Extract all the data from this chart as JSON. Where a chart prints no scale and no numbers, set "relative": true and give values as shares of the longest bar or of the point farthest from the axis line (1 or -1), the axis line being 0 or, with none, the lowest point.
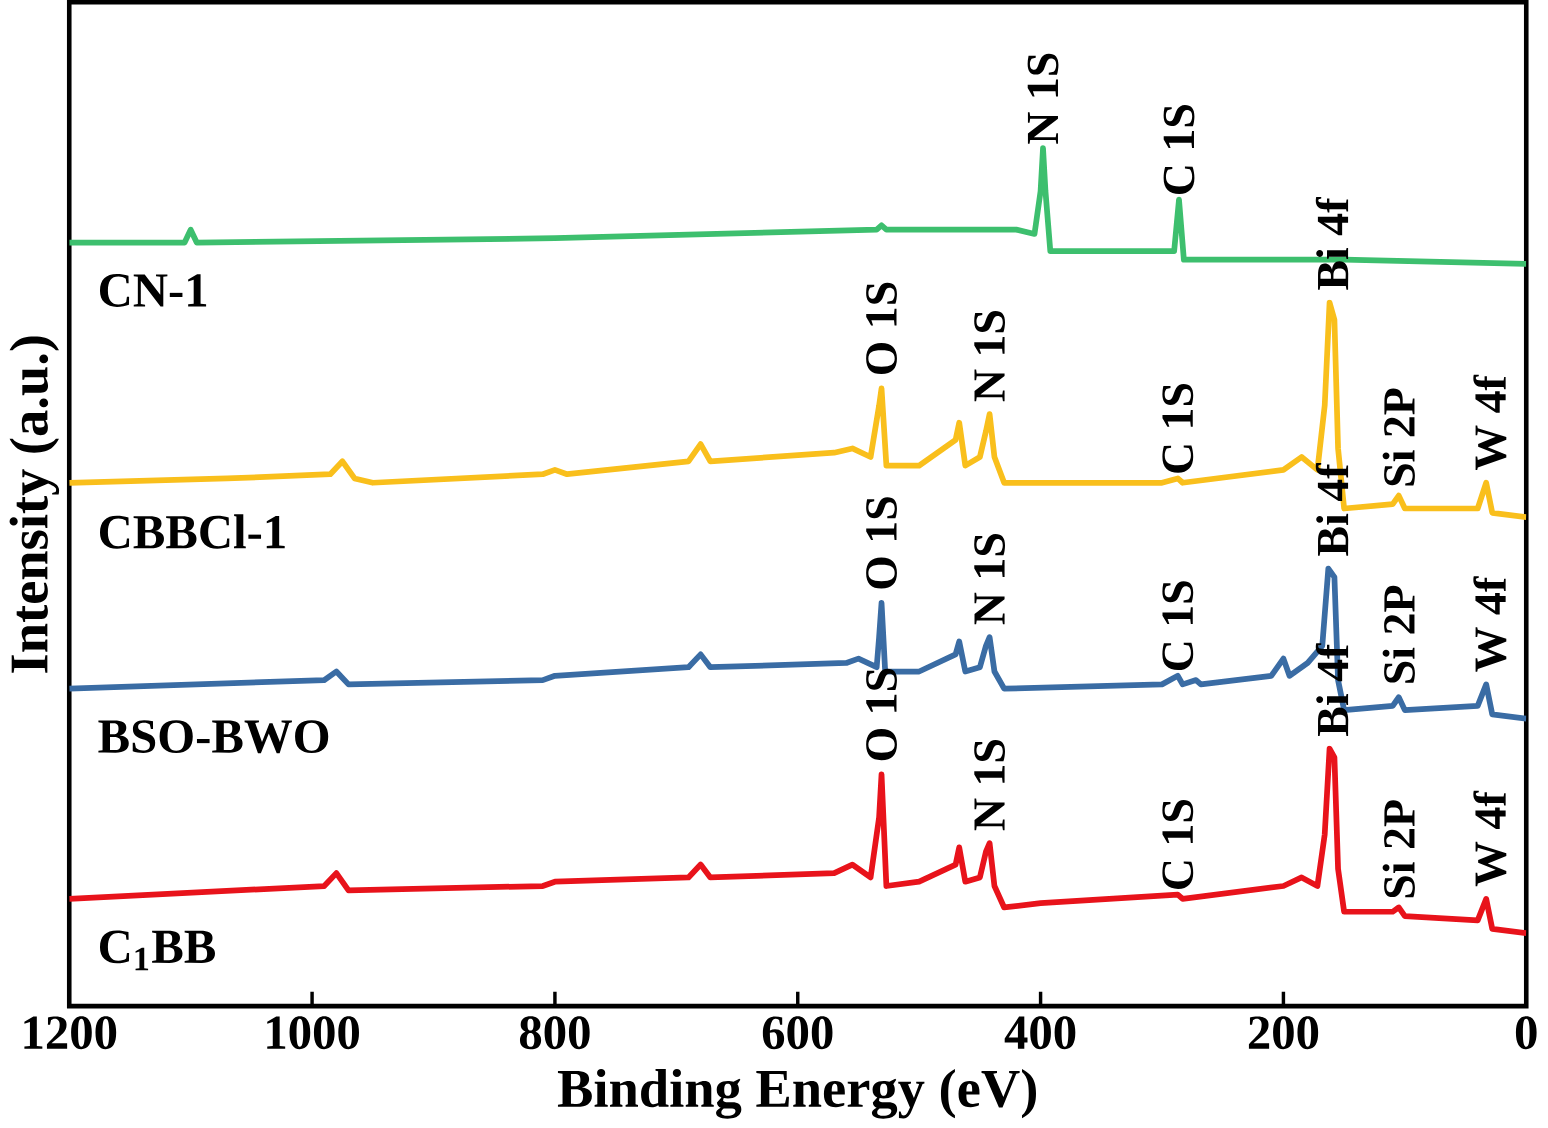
{
  "chart_data": {
    "type": "line",
    "relative": true,
    "xlabel": "Binding Energy (eV)",
    "ylabel": "Intensity (a.u.)",
    "xlim": [
      1200,
      0
    ],
    "xticks": [
      1200,
      1000,
      800,
      600,
      400,
      200,
      0
    ],
    "line_style": "solid",
    "series": [
      {
        "name": "CN-1",
        "color": "#3dbf6e",
        "x": [
          1200,
          1105,
          1100,
          1095,
          800,
          535,
          531,
          527,
          420,
          405,
          400,
          398,
          396,
          392,
          300,
          290,
          286,
          282,
          150,
          0
        ],
        "values": [
          0.89,
          0.89,
          0.905,
          0.89,
          0.895,
          0.905,
          0.91,
          0.905,
          0.905,
          0.9,
          0.95,
          1,
          0.95,
          0.88,
          0.88,
          0.88,
          0.94,
          0.87,
          0.87,
          0.865
        ]
      },
      {
        "name": "CBBCl-1",
        "color": "#f9bf1c",
        "x": [
          1200,
          1070,
          985,
          975,
          965,
          950,
          810,
          800,
          790,
          690,
          680,
          672,
          570,
          555,
          540,
          533,
          531,
          527,
          500,
          470,
          467,
          462,
          450,
          445,
          442,
          438,
          430,
          300,
          287,
          283,
          200,
          185,
          172,
          166,
          162,
          158,
          155,
          150,
          110,
          105,
          100,
          40,
          33,
          28,
          0
        ],
        "values": [
          0.61,
          0.615,
          0.62,
          0.635,
          0.615,
          0.61,
          0.62,
          0.625,
          0.62,
          0.635,
          0.655,
          0.635,
          0.645,
          0.65,
          0.64,
          0.7,
          0.72,
          0.63,
          0.63,
          0.66,
          0.68,
          0.63,
          0.64,
          0.67,
          0.69,
          0.64,
          0.61,
          0.61,
          0.615,
          0.61,
          0.625,
          0.64,
          0.625,
          0.7,
          0.82,
          0.8,
          0.65,
          0.58,
          0.585,
          0.595,
          0.58,
          0.58,
          0.61,
          0.575,
          0.57
        ]
      },
      {
        "name": "BSO-BWO",
        "color": "#3a6ca4",
        "x": [
          1200,
          990,
          980,
          970,
          810,
          800,
          690,
          680,
          672,
          560,
          550,
          535,
          533,
          531,
          528,
          500,
          470,
          467,
          462,
          450,
          445,
          442,
          438,
          430,
          300,
          287,
          283,
          272,
          268,
          210,
          200,
          195,
          180,
          168,
          163,
          158,
          155,
          150,
          110,
          105,
          100,
          40,
          33,
          28,
          0
        ],
        "values": [
          0.37,
          0.38,
          0.39,
          0.375,
          0.38,
          0.385,
          0.395,
          0.41,
          0.395,
          0.4,
          0.405,
          0.395,
          0.43,
          0.47,
          0.39,
          0.39,
          0.41,
          0.425,
          0.39,
          0.395,
          0.42,
          0.43,
          0.39,
          0.37,
          0.375,
          0.385,
          0.375,
          0.38,
          0.375,
          0.385,
          0.405,
          0.385,
          0.4,
          0.42,
          0.51,
          0.5,
          0.38,
          0.345,
          0.35,
          0.36,
          0.345,
          0.35,
          0.375,
          0.34,
          0.335
        ]
      },
      {
        "name": "C$_{1}$BB",
        "color": "#e8131b",
        "x": [
          1200,
          990,
          980,
          970,
          810,
          800,
          690,
          680,
          672,
          570,
          555,
          540,
          533,
          531,
          527,
          500,
          470,
          467,
          462,
          450,
          445,
          442,
          438,
          430,
          400,
          287,
          283,
          200,
          185,
          172,
          166,
          162,
          158,
          155,
          150,
          110,
          105,
          100,
          40,
          33,
          28,
          0
        ],
        "values": [
          0.125,
          0.14,
          0.155,
          0.135,
          0.14,
          0.145,
          0.15,
          0.165,
          0.15,
          0.155,
          0.165,
          0.15,
          0.22,
          0.27,
          0.14,
          0.145,
          0.165,
          0.185,
          0.145,
          0.15,
          0.18,
          0.19,
          0.14,
          0.115,
          0.12,
          0.13,
          0.125,
          0.14,
          0.15,
          0.14,
          0.2,
          0.3,
          0.29,
          0.16,
          0.11,
          0.11,
          0.115,
          0.105,
          0.1,
          0.125,
          0.09,
          0.085
        ]
      }
    ],
    "annotations": [
      {
        "text": "N 1S",
        "x": 398,
        "y": 1.0
      },
      {
        "text": "C 1S",
        "x": 286,
        "y": 0.94
      },
      {
        "text": "O 1S",
        "x": 531,
        "y": 0.73
      },
      {
        "text": "N 1S",
        "x": 442,
        "y": 0.7
      },
      {
        "text": "C 1S",
        "x": 287,
        "y": 0.615
      },
      {
        "text": "Bi 4f",
        "x": 160,
        "y": 0.83
      },
      {
        "text": "Si 2P",
        "x": 105,
        "y": 0.6
      },
      {
        "text": "W 4f",
        "x": 30,
        "y": 0.62
      },
      {
        "text": "O 1S",
        "x": 531,
        "y": 0.48
      },
      {
        "text": "N 1S",
        "x": 442,
        "y": 0.44
      },
      {
        "text": "C 1S",
        "x": 287,
        "y": 0.385
      },
      {
        "text": "Bi 4f",
        "x": 160,
        "y": 0.52
      },
      {
        "text": "Si 2P",
        "x": 105,
        "y": 0.37
      },
      {
        "text": "W 4f",
        "x": 30,
        "y": 0.385
      },
      {
        "text": "O 1S",
        "x": 531,
        "y": 0.28
      },
      {
        "text": "N 1S",
        "x": 442,
        "y": 0.2
      },
      {
        "text": "C 1S",
        "x": 287,
        "y": 0.13
      },
      {
        "text": "Bi 4f",
        "x": 160,
        "y": 0.31
      },
      {
        "text": "Si 2P",
        "x": 105,
        "y": 0.12
      },
      {
        "text": "W 4f",
        "x": 30,
        "y": 0.135
      }
    ]
  }
}
